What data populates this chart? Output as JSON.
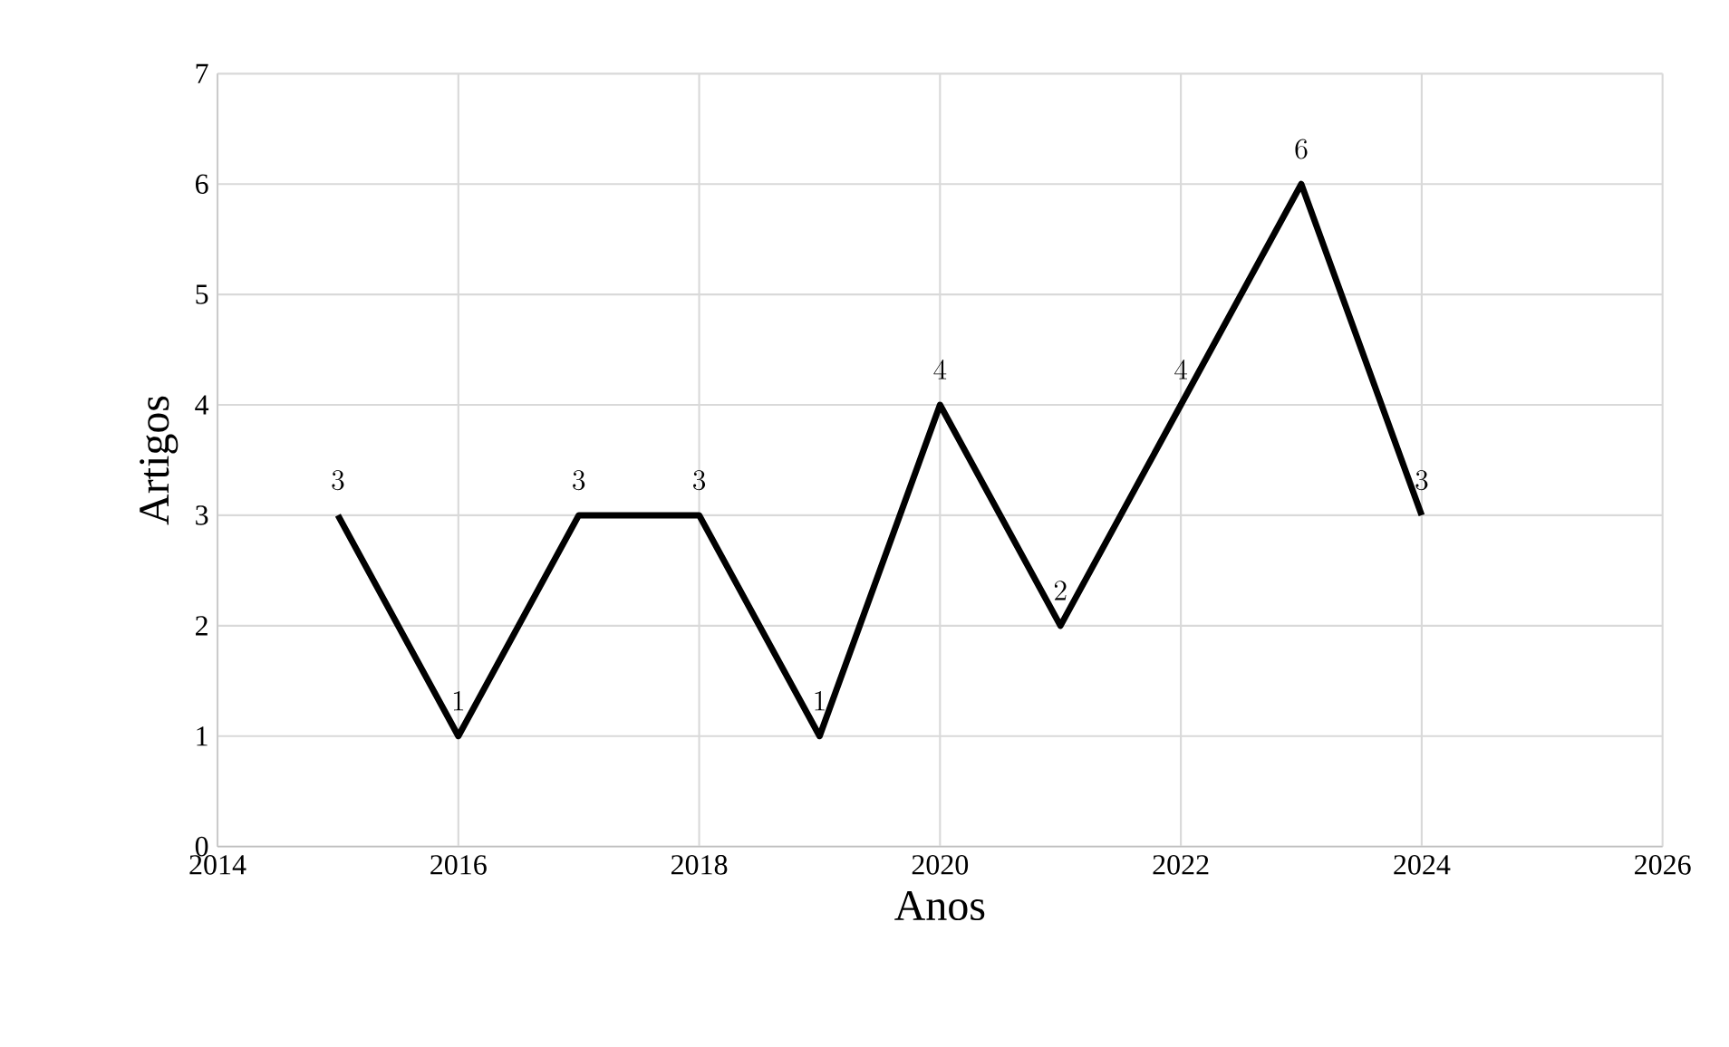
{
  "chart_data": {
    "type": "line",
    "xlabel": "Anos",
    "ylabel": "Artigos",
    "x": [
      2015,
      2016,
      2017,
      2018,
      2019,
      2020,
      2021,
      2022,
      2023,
      2024
    ],
    "series": [
      {
        "color": "#000000",
        "values": [
          3,
          1,
          3,
          3,
          1,
          4,
          2,
          4,
          6,
          3
        ]
      }
    ],
    "xlim": [
      2014,
      2026
    ],
    "xticks": [
      2014,
      2016,
      2018,
      2020,
      2022,
      2024,
      2026
    ],
    "ylim": [
      0,
      7
    ],
    "yticks": [
      0,
      1,
      2,
      3,
      4,
      5,
      6,
      7
    ],
    "grid": true,
    "data_labels": true,
    "marker": "none",
    "line_style": "solid"
  }
}
